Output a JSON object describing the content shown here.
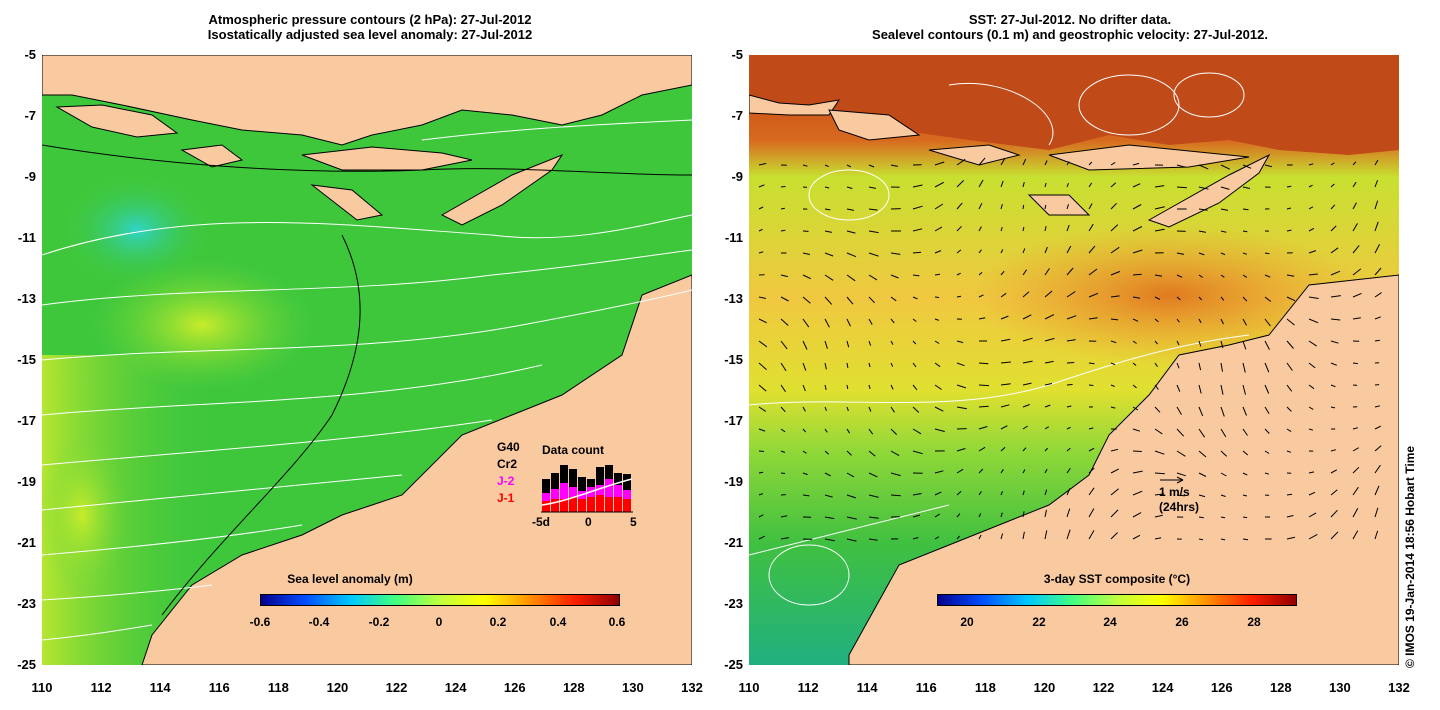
{
  "left_panel": {
    "title_line1": "Atmospheric pressure contours (2 hPa): 27-Jul-2012",
    "title_line2": "Isostatically adjusted sea level anomaly: 27-Jul-2012",
    "colorbar": {
      "title": "Sea level anomaly (m)",
      "min": -0.6,
      "max": 0.6,
      "labels": [
        "-0.6",
        "-0.4",
        "-0.2",
        "0",
        "0.2",
        "0.4",
        "0.6"
      ]
    },
    "data_count": {
      "title": "Data count",
      "satellites": [
        "G40",
        "Cr2",
        "J-2",
        "J-1"
      ],
      "x_labels": [
        "-5d",
        "0",
        "5"
      ],
      "colors": {
        "G40": "#000000",
        "Cr2": "#000000",
        "J-2": "#ff00ff",
        "J-1": "#ff0000"
      }
    }
  },
  "right_panel": {
    "title_line1": "SST: 27-Jul-2012. No drifter data.",
    "title_line2": "Sealevel contours (0.1 m) and geostrophic velocity: 27-Jul-2012.",
    "colorbar": {
      "title": "3-day SST composite (°C)",
      "min": 19,
      "max": 29,
      "labels": [
        "20",
        "22",
        "24",
        "26",
        "28"
      ]
    },
    "velocity_scale": {
      "line1": "1 m/s",
      "line2": "(24hrs)"
    }
  },
  "axes": {
    "lat_labels": [
      "-5",
      "-7",
      "-9",
      "-11",
      "-13",
      "-15",
      "-17",
      "-19",
      "-21",
      "-23",
      "-25"
    ],
    "lon_labels": [
      "110",
      "112",
      "114",
      "116",
      "118",
      "120",
      "122",
      "124",
      "126",
      "128",
      "130",
      "132"
    ]
  },
  "credit": "© IMOS 19-Jan-2014 18:56 Hobart Time",
  "colors": {
    "land": "#f9c9a0",
    "ocean_sla": "#3fc73c",
    "contour": "#ffffff"
  }
}
